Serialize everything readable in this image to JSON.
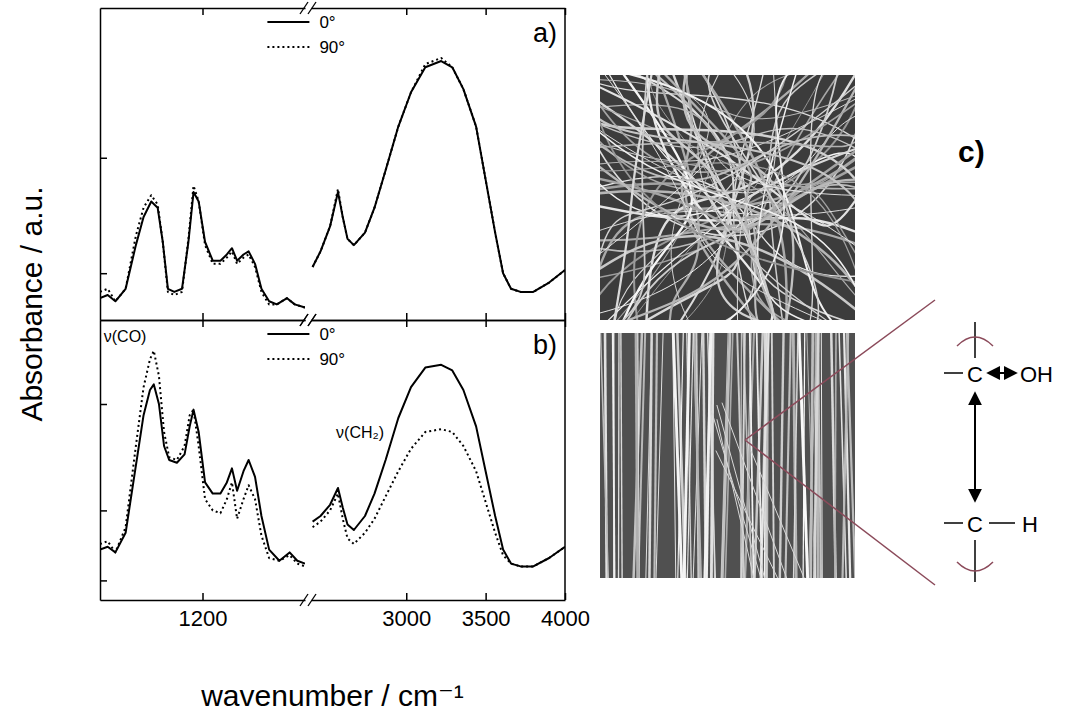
{
  "chart_data": [
    {
      "type": "line",
      "panel_label": "a)",
      "ylabel": "Absorbance / a.u.",
      "xlim": [
        [
          800,
          1600
        ],
        [
          2400,
          4000
        ]
      ],
      "xticks": [
        1200,
        3000,
        3500,
        4000
      ],
      "ylim": [
        0,
        1
      ],
      "yticks": [
        0.15,
        0.52
      ],
      "tick_labels": false,
      "legend": "top",
      "x": [
        800,
        830,
        860,
        900,
        940,
        970,
        1000,
        1025,
        1045,
        1065,
        1090,
        1120,
        1145,
        1165,
        1185,
        1210,
        1240,
        1270,
        1295,
        1315,
        1335,
        1360,
        1380,
        1405,
        1430,
        1460,
        1490,
        1530,
        1560,
        1600,
        2000,
        2410,
        2460,
        2520,
        2570,
        2600,
        2630,
        2670,
        2740,
        2800,
        2870,
        2950,
        3030,
        3120,
        3220,
        3290,
        3360,
        3440,
        3500,
        3560,
        3610,
        3660,
        3720,
        3800,
        3900,
        4000
      ],
      "series": [
        {
          "name": "0°",
          "color": "#000000",
          "line_style": "solid",
          "values": [
            0.07,
            0.08,
            0.06,
            0.1,
            0.24,
            0.33,
            0.38,
            0.36,
            0.25,
            0.1,
            0.09,
            0.1,
            0.25,
            0.41,
            0.38,
            0.25,
            0.19,
            0.19,
            0.21,
            0.23,
            0.19,
            0.21,
            0.22,
            0.18,
            0.1,
            0.06,
            0.05,
            0.07,
            0.05,
            0.04,
            null,
            0.17,
            0.22,
            0.3,
            0.41,
            0.33,
            0.26,
            0.24,
            0.28,
            0.36,
            0.48,
            0.62,
            0.73,
            0.81,
            0.83,
            0.81,
            0.74,
            0.62,
            0.45,
            0.28,
            0.15,
            0.1,
            0.09,
            0.09,
            0.12,
            0.16
          ]
        },
        {
          "name": "90°",
          "color": "#000000",
          "line_style": "dotted",
          "values": [
            0.09,
            0.1,
            0.06,
            0.1,
            0.27,
            0.36,
            0.4,
            0.37,
            0.25,
            0.09,
            0.08,
            0.09,
            0.26,
            0.43,
            0.38,
            0.24,
            0.18,
            0.18,
            0.2,
            0.22,
            0.18,
            0.2,
            0.21,
            0.17,
            0.09,
            0.05,
            0.05,
            0.07,
            0.05,
            0.04,
            null,
            0.17,
            0.22,
            0.3,
            0.42,
            0.33,
            0.26,
            0.24,
            0.28,
            0.36,
            0.48,
            0.62,
            0.73,
            0.82,
            0.84,
            0.81,
            0.74,
            0.62,
            0.45,
            0.28,
            0.15,
            0.1,
            0.09,
            0.09,
            0.12,
            0.16
          ]
        }
      ]
    },
    {
      "type": "line",
      "panel_label": "b)",
      "xlabel": "wavenumber / cm⁻¹",
      "xlim": [
        [
          800,
          1600
        ],
        [
          2400,
          4000
        ]
      ],
      "xticks": [
        1200,
        3000,
        3500,
        4000
      ],
      "ylim": [
        0,
        1
      ],
      "yticks": [
        0.07,
        0.32,
        0.7
      ],
      "tick_labels": "x",
      "legend": "top",
      "annotations": [
        {
          "text": "ν(CO)",
          "x": 898,
          "y": 0.92
        },
        {
          "text": "ν(CH₂)",
          "x": 2709,
          "y": 0.58
        }
      ],
      "x": [
        800,
        830,
        860,
        900,
        940,
        970,
        995,
        1010,
        1030,
        1050,
        1070,
        1100,
        1130,
        1150,
        1165,
        1185,
        1210,
        1240,
        1270,
        1295,
        1315,
        1335,
        1360,
        1380,
        1405,
        1430,
        1460,
        1500,
        1540,
        1570,
        1600,
        2000,
        2410,
        2460,
        2520,
        2570,
        2600,
        2630,
        2670,
        2740,
        2800,
        2870,
        2950,
        3030,
        3120,
        3220,
        3290,
        3360,
        3440,
        3500,
        3560,
        3610,
        3660,
        3720,
        3800,
        3900,
        4000
      ],
      "series": [
        {
          "name": "0°",
          "color": "#000000",
          "line_style": "solid",
          "values": [
            0.18,
            0.19,
            0.17,
            0.24,
            0.48,
            0.66,
            0.75,
            0.77,
            0.7,
            0.55,
            0.5,
            0.49,
            0.52,
            0.62,
            0.68,
            0.6,
            0.42,
            0.38,
            0.38,
            0.42,
            0.47,
            0.39,
            0.46,
            0.5,
            0.44,
            0.3,
            0.18,
            0.14,
            0.17,
            0.14,
            0.13,
            null,
            0.28,
            0.3,
            0.34,
            0.4,
            0.33,
            0.27,
            0.25,
            0.3,
            0.38,
            0.5,
            0.65,
            0.76,
            0.83,
            0.84,
            0.82,
            0.75,
            0.62,
            0.46,
            0.3,
            0.18,
            0.13,
            0.12,
            0.12,
            0.15,
            0.19
          ]
        },
        {
          "name": "90°",
          "color": "#000000",
          "line_style": "dotted",
          "values": [
            0.2,
            0.21,
            0.17,
            0.26,
            0.55,
            0.76,
            0.86,
            0.89,
            0.8,
            0.6,
            0.51,
            0.5,
            0.55,
            0.66,
            0.68,
            0.55,
            0.36,
            0.32,
            0.31,
            0.36,
            0.42,
            0.29,
            0.36,
            0.41,
            0.36,
            0.23,
            0.15,
            0.14,
            0.16,
            0.13,
            0.12,
            null,
            0.26,
            0.28,
            0.32,
            0.38,
            0.29,
            0.22,
            0.2,
            0.24,
            0.29,
            0.37,
            0.46,
            0.54,
            0.6,
            0.61,
            0.6,
            0.55,
            0.46,
            0.35,
            0.24,
            0.16,
            0.13,
            0.12,
            0.12,
            0.15,
            0.19
          ]
        }
      ]
    }
  ],
  "diagram": {
    "label": "c)",
    "top_group": [
      "C",
      "OH"
    ],
    "bottom_group": [
      "C",
      "H"
    ]
  }
}
